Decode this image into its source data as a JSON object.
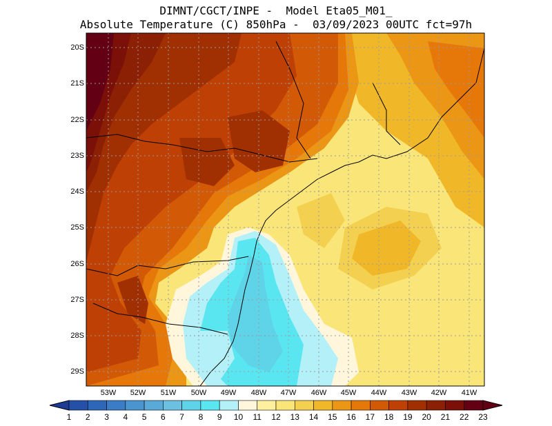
{
  "title": {
    "line1": "DIMNT/CGCT/INPE -  Model Eta05_M01_",
    "line2": "Absolute Temperature (C) 850hPa -  03/09/2023 00UTC fct=97h"
  },
  "map": {
    "lat_ticks": [
      "20S",
      "21S",
      "22S",
      "23S",
      "24S",
      "25S",
      "26S",
      "27S",
      "28S",
      "29S"
    ],
    "lon_ticks": [
      "53W",
      "52W",
      "51W",
      "50W",
      "49W",
      "48W",
      "47W",
      "46W",
      "45W",
      "44W",
      "43W",
      "42W",
      "41W"
    ],
    "lon_range": [
      -53.7,
      -40.5
    ],
    "lat_range": [
      -19.7,
      -29.4
    ]
  },
  "colorbar": {
    "labels": [
      "1",
      "2",
      "3",
      "4",
      "5",
      "6",
      "7",
      "8",
      "9",
      "10",
      "11",
      "12",
      "13",
      "14",
      "15",
      "16",
      "17",
      "18",
      "19",
      "20",
      "21",
      "22",
      "23"
    ],
    "colors": [
      "#1e3c96",
      "#2450a8",
      "#2e66b8",
      "#3a7cc6",
      "#4a94d0",
      "#5aaad8",
      "#6cc0e0",
      "#5fd4e8",
      "#59e6f0",
      "#b4f0f8",
      "#fff6dc",
      "#fff0a0",
      "#fae678",
      "#f4d050",
      "#f0b828",
      "#eb9614",
      "#e6780a",
      "#d25a06",
      "#be4004",
      "#a03002",
      "#8c2004",
      "#7a1008",
      "#640014"
    ]
  }
}
